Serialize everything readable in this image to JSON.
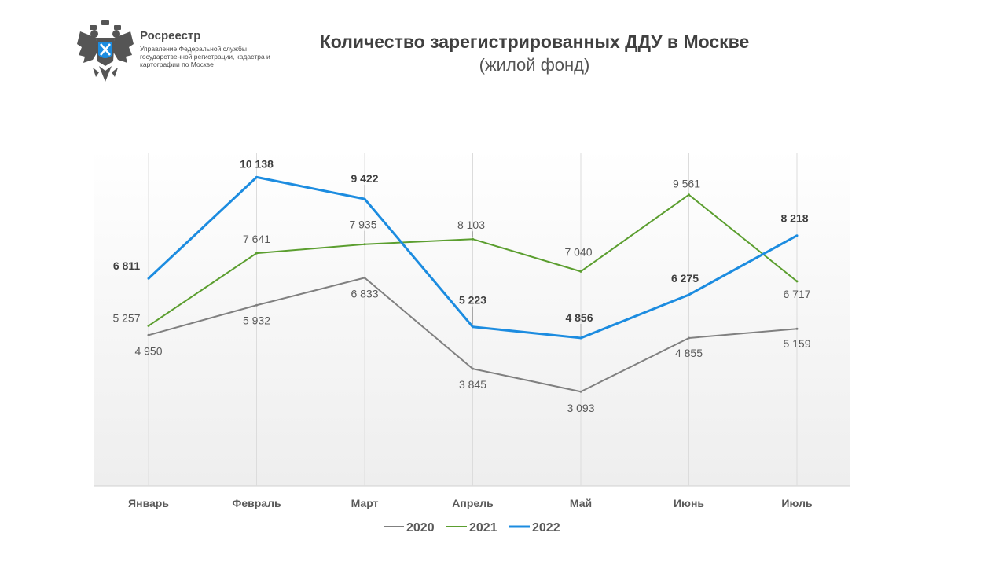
{
  "header": {
    "org_name": "Росреестр",
    "org_subtitle": "Управление Федеральной службы государственной регистрации, кадастра и картографии по Москве",
    "logo_icon": "double-headed-eagle-emblem-icon"
  },
  "chart_data": {
    "type": "line",
    "title": "Количество зарегистрированных ДДУ в Москве",
    "subtitle": "(жилой фонд)",
    "categories": [
      "Январь",
      "Февраль",
      "Март",
      "Апрель",
      "Май",
      "Июнь",
      "Июль"
    ],
    "ylim": [
      0,
      11000
    ],
    "grid": "vertical",
    "legend": "bottom-center",
    "series": [
      {
        "name": "2020",
        "color": "#808080",
        "bold": false,
        "values": [
          4950,
          5932,
          6833,
          3845,
          3093,
          4855,
          5159
        ],
        "labels": [
          "4 950",
          "5 932",
          "6 833",
          "3 845",
          "3 093",
          "4 855",
          "5 159"
        ]
      },
      {
        "name": "2021",
        "color": "#5b9e2f",
        "bold": false,
        "values": [
          5257,
          7641,
          7935,
          8103,
          7040,
          9561,
          6717
        ],
        "labels": [
          "5 257",
          "7 641",
          "7 935",
          "8 103",
          "7 040",
          "9 561",
          "6 717"
        ]
      },
      {
        "name": "2022",
        "color": "#1c8ce0",
        "bold": true,
        "values": [
          6811,
          10138,
          9422,
          5223,
          4856,
          6275,
          8218
        ],
        "labels": [
          "6 811",
          "10 138",
          "9 422",
          "5 223",
          "4 856",
          "6 275",
          "8 218"
        ]
      }
    ]
  }
}
